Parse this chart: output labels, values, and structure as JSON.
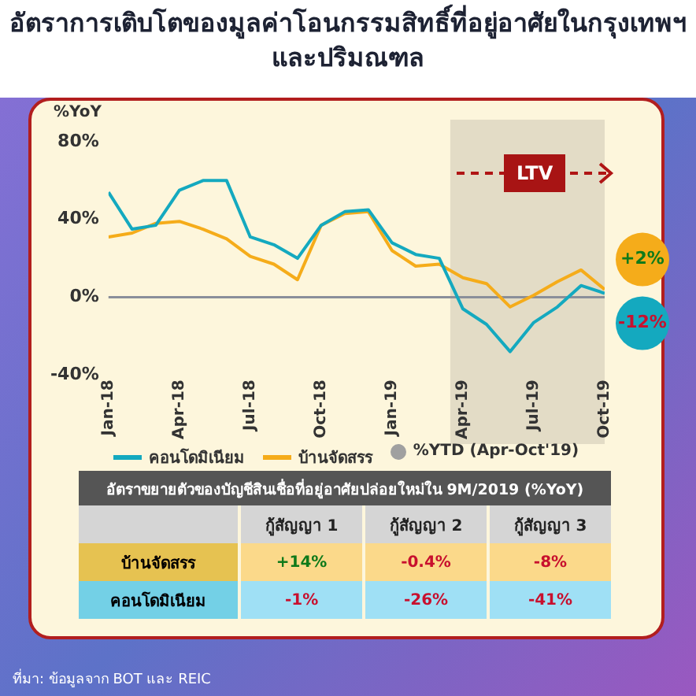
{
  "chart_data": [
    {
      "type": "line",
      "title": "อัตราการเติบโตของมูลค่าโอนกรรมสิทธิ์ที่อยู่อาศัยในกรุงเทพฯ และปริมณฑล",
      "ylabel": "%YoY",
      "x": [
        "2018-01",
        "2018-02",
        "2018-03",
        "2018-04",
        "2018-05",
        "2018-06",
        "2018-07",
        "2018-08",
        "2018-09",
        "2018-10",
        "2018-11",
        "2018-12",
        "2019-01",
        "2019-02",
        "2019-03",
        "2019-04",
        "2019-05",
        "2019-06",
        "2019-07",
        "2019-08",
        "2019-09",
        "2019-10"
      ],
      "series": [
        {
          "name": "คอนโดมิเนียม",
          "color": "#14a9bf",
          "values": [
            54,
            35,
            37,
            55,
            60,
            60,
            31,
            27,
            20,
            37,
            44,
            45,
            28,
            22,
            20,
            -6,
            -14,
            -28,
            -13,
            -5,
            6,
            2
          ]
        },
        {
          "name": "บ้านจัดสรร",
          "color": "#f5ac1a",
          "values": [
            31,
            33,
            38,
            39,
            35,
            30,
            21,
            17,
            9,
            37,
            43,
            44,
            24,
            16,
            17,
            10,
            7,
            -5,
            1,
            8,
            14,
            4
          ]
        }
      ],
      "xlim": [
        "2018-01",
        "2019-10"
      ],
      "xticks": [
        {
          "value": "2018-01",
          "label": "Jan-18"
        },
        {
          "value": "2018-04",
          "label": "Apr-18"
        },
        {
          "value": "2018-07",
          "label": "Jul-18"
        },
        {
          "value": "2018-10",
          "label": "Oct-18"
        },
        {
          "value": "2019-01",
          "label": "Jan-19"
        },
        {
          "value": "2019-04",
          "label": "Apr-19"
        },
        {
          "value": "2019-07",
          "label": "Jul-19"
        },
        {
          "value": "2019-10",
          "label": "Oct-19"
        }
      ],
      "ylim": [
        -40,
        80
      ],
      "yticks": [
        {
          "value": -40,
          "label": "-40%"
        },
        {
          "value": 0,
          "label": "0%"
        },
        {
          "value": 40,
          "label": "40%"
        },
        {
          "value": 80,
          "label": "80%"
        }
      ],
      "ref_lines": [
        {
          "axis": "y",
          "value": 0,
          "color": "#8a8f9a"
        }
      ],
      "bands": [
        {
          "axis": "x",
          "from": "2019-03-15",
          "to": "2019-10",
          "label": "LTV",
          "color": "#e3dcc6"
        }
      ],
      "annotations": [
        {
          "text": "-12%",
          "x": "2019-10",
          "y": 2
        },
        {
          "text": "+2%",
          "x": "2019-10",
          "y": 4
        },
        "%YTD (Apr-Oct'19)",
        "ที่มา: ข้อมูลจาก BOT และ REIC"
      ],
      "legend": "bottom",
      "grid": false,
      "marker": "none",
      "line_style": "solid"
    },
    {
      "type": "heatmap",
      "title": "อัตราขยายตัวของบัญชีสินเชื่อที่อยู่อาศัยปล่อยใหม่ใน 9M/2019 (%YoY)",
      "categories": [
        "กู้สัญญา 1",
        "กู้สัญญา 2",
        "กู้สัญญา 3"
      ],
      "y_categories": [
        "บ้านจัดสรร",
        "คอนโดมิเนียม"
      ],
      "cells": [
        [
          14,
          -0.4,
          -8
        ],
        [
          -1,
          -26,
          -41
        ]
      ],
      "cell_labels": [
        [
          "+14%",
          "-0.4%",
          "-8%"
        ],
        [
          "-1%",
          "-26%",
          "-41%"
        ]
      ]
    }
  ]
}
